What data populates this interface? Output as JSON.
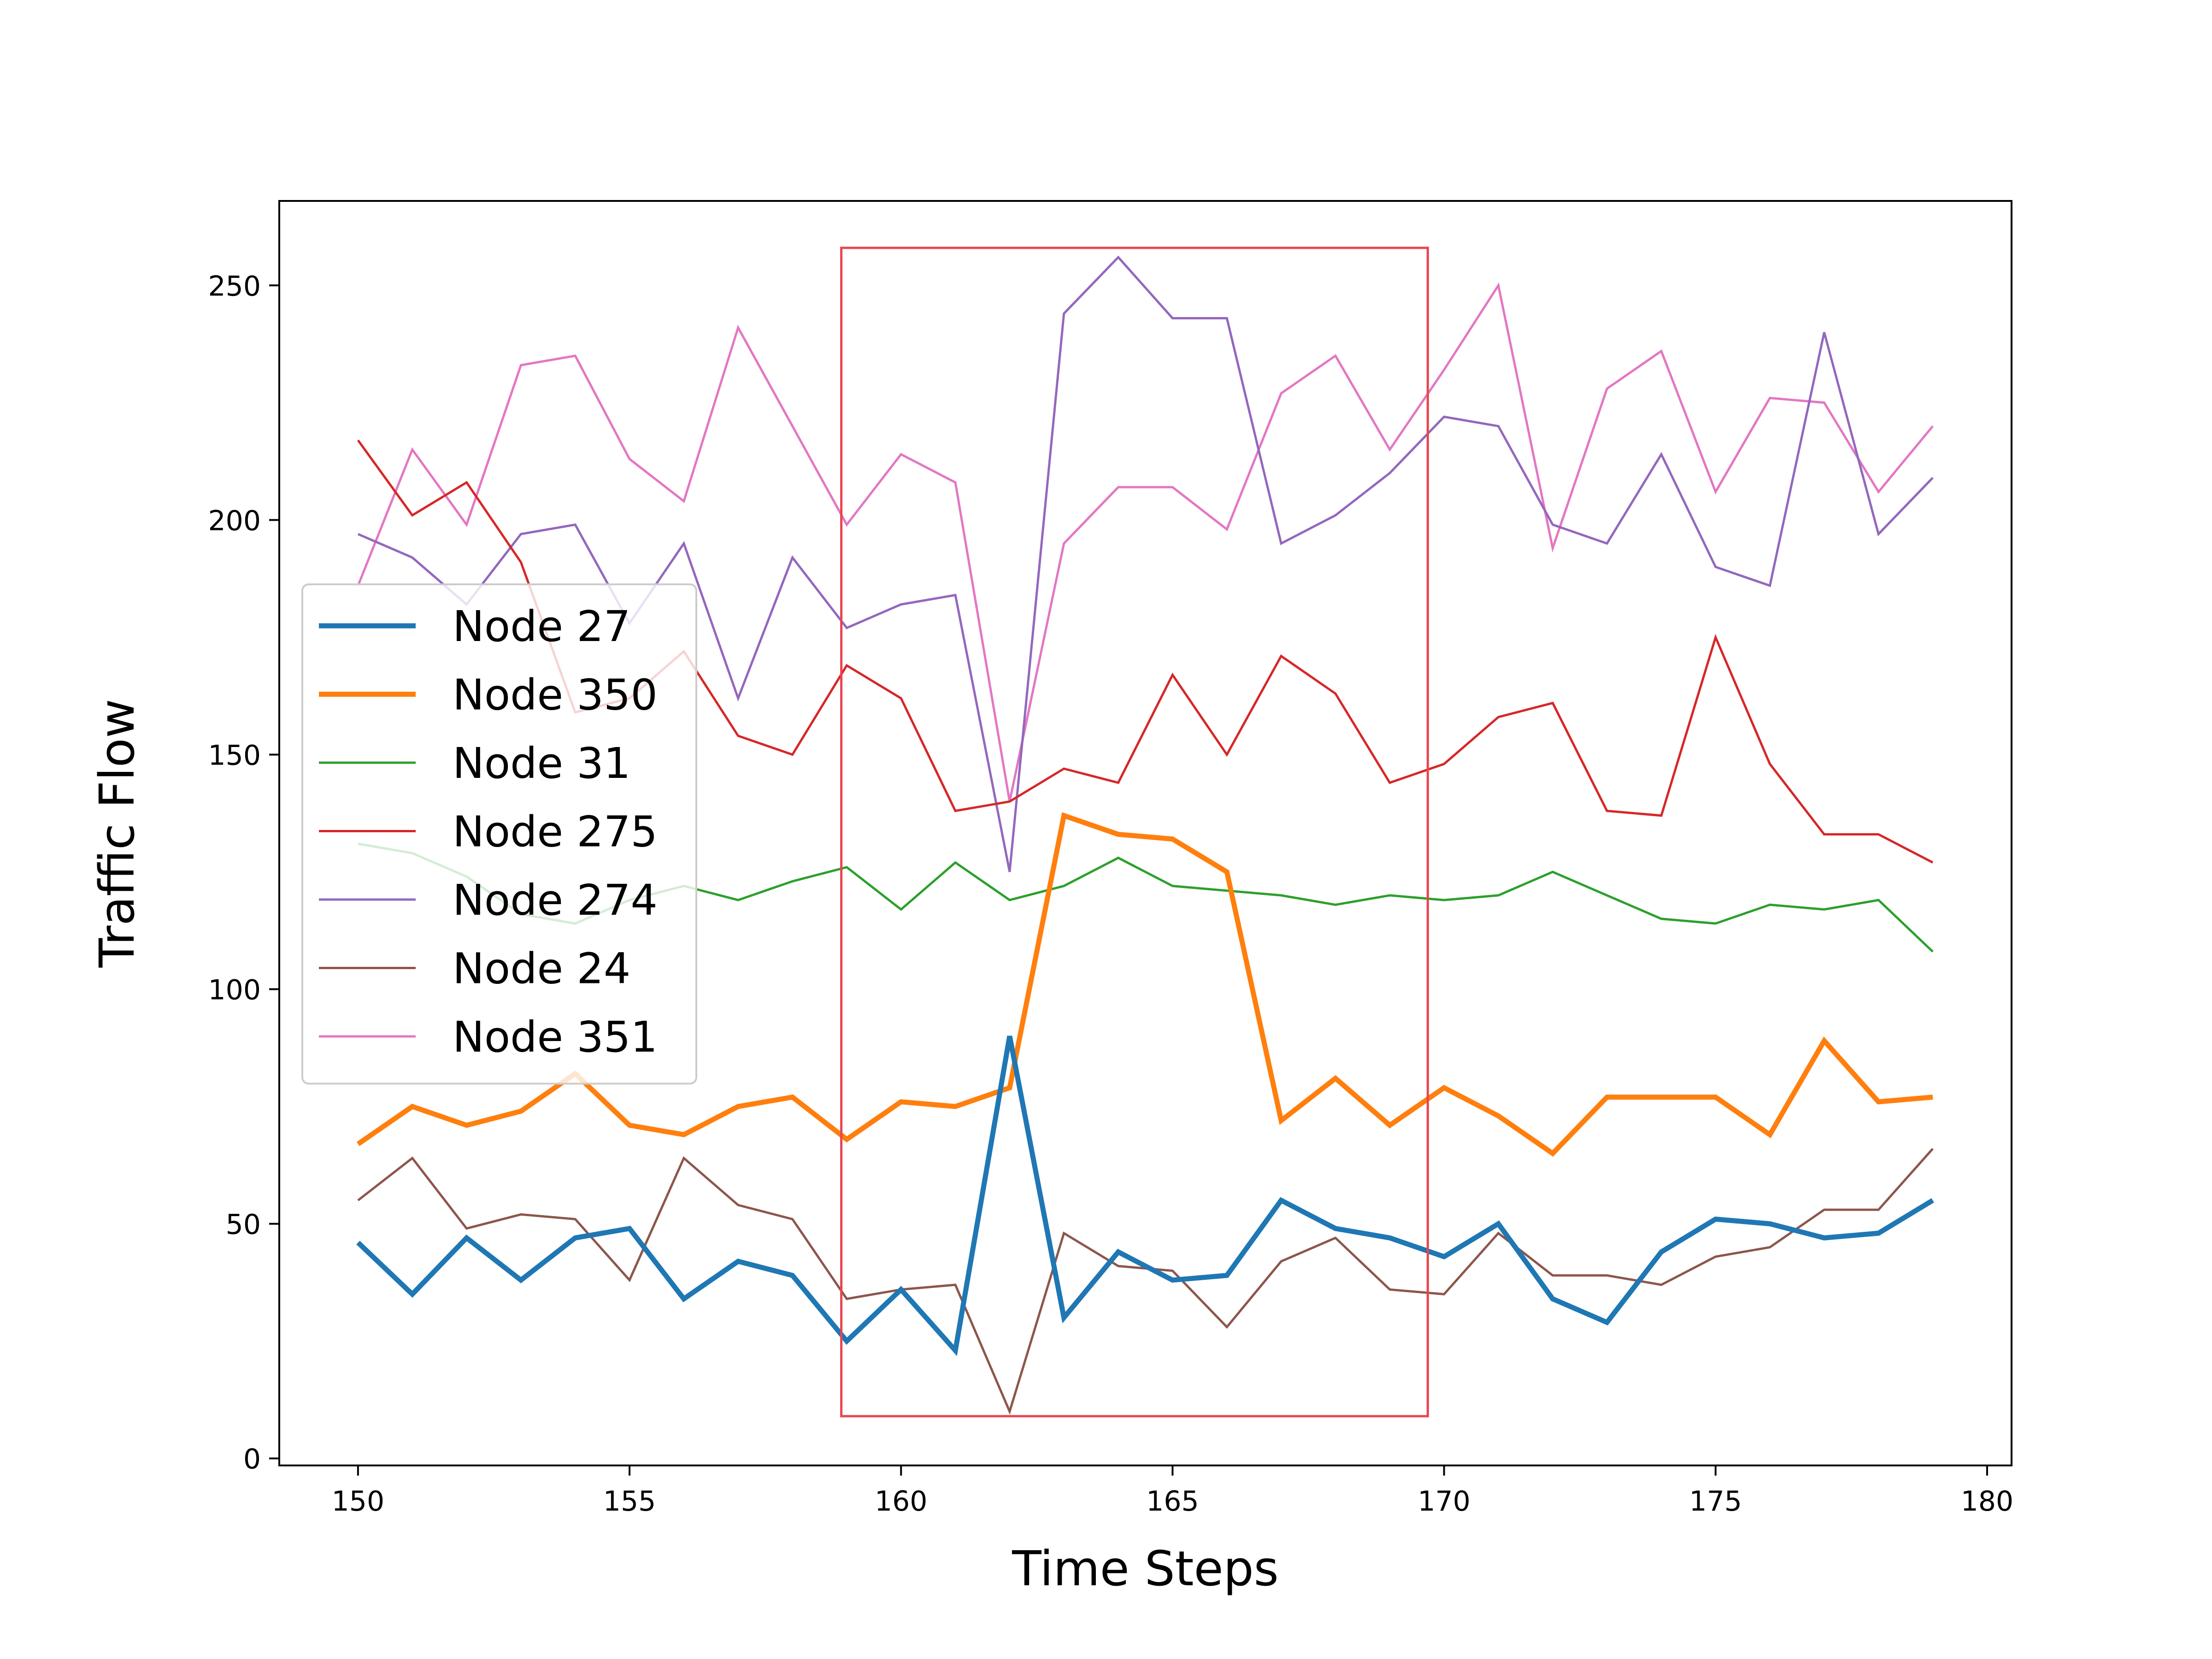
{
  "chart_data": {
    "type": "line",
    "title": "",
    "xlabel": "Time Steps",
    "ylabel": "Traffic Flow",
    "xlim": [
      148.55,
      180.45
    ],
    "ylim": [
      -1.5,
      268
    ],
    "xticks": [
      150,
      155,
      160,
      165,
      170,
      175,
      180
    ],
    "yticks": [
      0,
      50,
      100,
      150,
      200,
      250
    ],
    "grid": false,
    "legend_position": "center-left",
    "x": [
      150,
      151,
      152,
      153,
      154,
      155,
      156,
      157,
      158,
      159,
      160,
      161,
      162,
      163,
      164,
      165,
      166,
      167,
      168,
      169,
      170,
      171,
      172,
      173,
      174,
      175,
      176,
      177,
      178,
      179
    ],
    "series": [
      {
        "name": "Node 27",
        "color": "#1f77b4",
        "width": "thick",
        "values": [
          46,
          35,
          47,
          38,
          47,
          49,
          34,
          42,
          39,
          25,
          36,
          23,
          90,
          30,
          44,
          38,
          39,
          55,
          49,
          47,
          43,
          50,
          34,
          29,
          44,
          51,
          50,
          47,
          48,
          55
        ]
      },
      {
        "name": "Node 350",
        "color": "#ff7f0e",
        "width": "thick",
        "values": [
          67,
          75,
          71,
          74,
          82,
          71,
          69,
          75,
          77,
          68,
          76,
          75,
          79,
          137,
          133,
          132,
          125,
          72,
          81,
          71,
          79,
          73,
          65,
          77,
          77,
          77,
          69,
          89,
          76,
          77
        ]
      },
      {
        "name": "Node 31",
        "color": "#2ca02c",
        "width": "thin",
        "values": [
          131,
          129,
          124,
          116,
          114,
          119,
          122,
          119,
          123,
          126,
          117,
          127,
          119,
          122,
          128,
          122,
          121,
          120,
          118,
          120,
          119,
          120,
          125,
          120,
          115,
          114,
          118,
          117,
          119,
          108
        ]
      },
      {
        "name": "Node 275",
        "color": "#d62728",
        "width": "thin",
        "values": [
          217,
          201,
          208,
          191,
          159,
          162,
          172,
          154,
          150,
          169,
          162,
          138,
          140,
          147,
          144,
          167,
          150,
          171,
          163,
          144,
          148,
          158,
          161,
          138,
          137,
          175,
          148,
          133,
          133,
          127
        ]
      },
      {
        "name": "Node 274",
        "color": "#9467bd",
        "width": "thin",
        "values": [
          197,
          192,
          182,
          197,
          199,
          178,
          195,
          162,
          192,
          177,
          182,
          184,
          125,
          244,
          256,
          243,
          243,
          195,
          201,
          210,
          222,
          220,
          199,
          195,
          214,
          190,
          186,
          240,
          197,
          209
        ]
      },
      {
        "name": "Node 24",
        "color": "#8c564b",
        "width": "thin",
        "values": [
          55,
          64,
          49,
          52,
          51,
          38,
          64,
          54,
          51,
          34,
          36,
          37,
          10,
          48,
          41,
          40,
          28,
          42,
          47,
          36,
          35,
          48,
          39,
          39,
          37,
          43,
          45,
          53,
          53,
          66
        ]
      },
      {
        "name": "Node 351",
        "color": "#e377c2",
        "width": "thin",
        "values": [
          186,
          215,
          199,
          233,
          235,
          213,
          204,
          241,
          220,
          199,
          214,
          208,
          140,
          195,
          207,
          207,
          198,
          227,
          235,
          215,
          232,
          250,
          194,
          228,
          236,
          206,
          226,
          225,
          206,
          220
        ]
      }
    ],
    "annotations": [
      {
        "type": "rectangle",
        "color": "#e8454f",
        "x_range": [
          158.9,
          169.7
        ],
        "y_range": [
          9,
          258
        ]
      }
    ]
  }
}
